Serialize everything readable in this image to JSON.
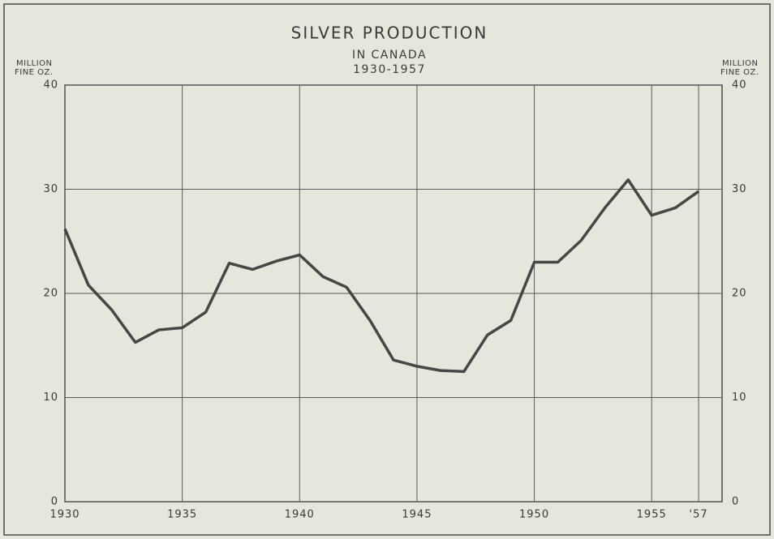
{
  "chart_data": {
    "type": "line",
    "title": "SILVER PRODUCTION",
    "subtitle": [
      "IN CANADA",
      "1930-1957"
    ],
    "y_label": [
      "MILLION",
      "FINE OZ."
    ],
    "y2_label": [
      "MILLION",
      "FINE OZ."
    ],
    "x": [
      1930,
      1931,
      1932,
      1933,
      1934,
      1935,
      1936,
      1937,
      1938,
      1939,
      1940,
      1941,
      1942,
      1943,
      1944,
      1945,
      1946,
      1947,
      1948,
      1949,
      1950,
      1951,
      1952,
      1953,
      1954,
      1955,
      1956,
      1957
    ],
    "series": [
      {
        "name": "Silver production",
        "color": "#464644",
        "values": [
          26.2,
          20.8,
          18.4,
          15.3,
          16.5,
          16.7,
          18.2,
          22.9,
          22.3,
          23.1,
          23.7,
          21.6,
          20.6,
          17.4,
          13.6,
          13.0,
          12.6,
          12.5,
          16.0,
          17.4,
          23.0,
          23.0,
          25.1,
          28.2,
          30.9,
          27.5,
          28.2,
          29.8
        ]
      }
    ],
    "xlim": [
      1930,
      1958
    ],
    "xticks": [
      1930,
      1935,
      1940,
      1945,
      1950,
      1955,
      {
        "value": 1957,
        "label": "'57"
      }
    ],
    "ylim": [
      0,
      40
    ],
    "yticks": [
      0,
      10,
      20,
      30,
      40
    ],
    "y2lim": [
      0,
      40
    ],
    "y2ticks": [
      0,
      10,
      20,
      30,
      40
    ],
    "grid": true
  }
}
